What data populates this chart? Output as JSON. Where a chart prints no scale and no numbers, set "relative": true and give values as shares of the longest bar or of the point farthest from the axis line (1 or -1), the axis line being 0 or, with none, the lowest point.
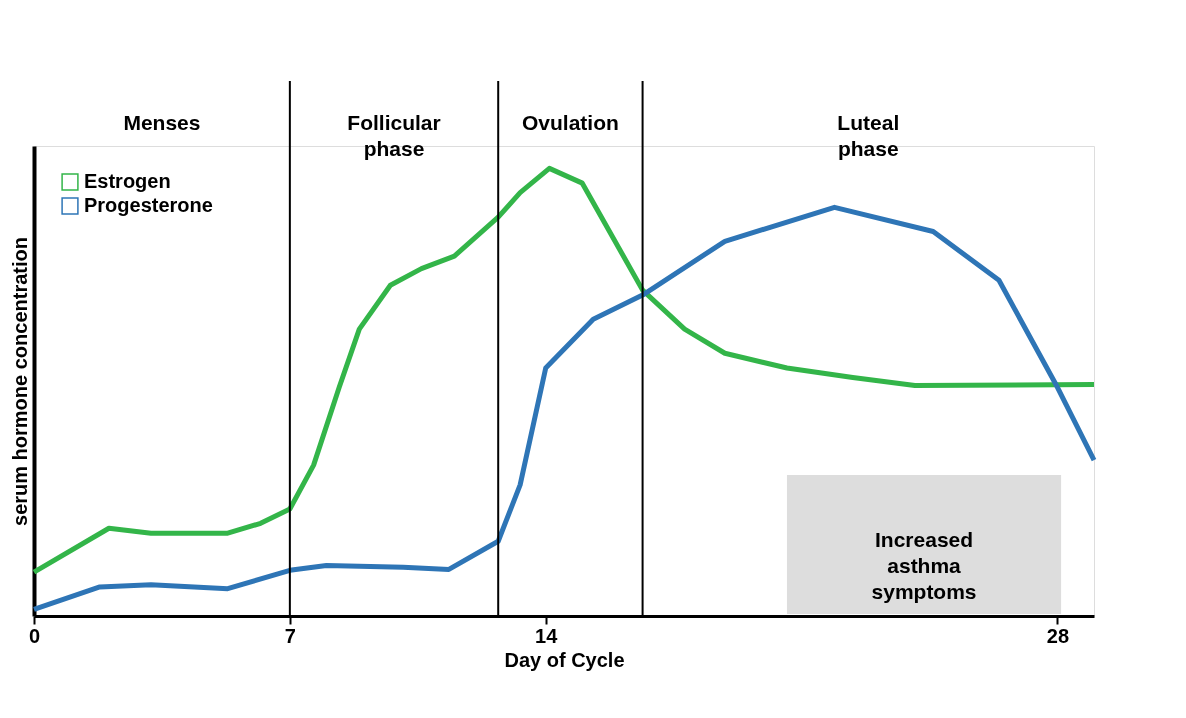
{
  "chart_data": {
    "type": "line",
    "xlabel": "Day of Cycle",
    "ylabel": "serum hormone concentration",
    "relative": true,
    "x": [
      0,
      2.05,
      3.2,
      5.3,
      6.2,
      7,
      7.65,
      8.35,
      8.9,
      9.75,
      10.6,
      11.5,
      12.7,
      13.3,
      14.1,
      15.0,
      16.65,
      17.8,
      18.9,
      20.6,
      22.4,
      24.1,
      29.0
    ],
    "series": [
      {
        "name": "Estrogen",
        "color": "#33b549",
        "values": [
          0.098,
          0.196,
          0.185,
          0.185,
          0.207,
          0.239,
          0.337,
          0.511,
          0.641,
          0.739,
          0.776,
          0.804,
          0.891,
          0.946,
          1.0,
          0.967,
          0.728,
          0.641,
          0.587,
          0.554,
          0.533,
          0.515,
          0.517
        ]
      },
      {
        "name": "Progesterone",
        "color": "#2e75b6",
        "x": [
          0,
          1.8,
          3.2,
          5.3,
          7,
          8.0,
          10.1,
          11.35,
          12.7,
          13.3,
          14,
          15.3,
          16.65,
          18.9,
          21.9,
          24.6,
          26.4,
          28.0,
          29.0
        ],
        "values": [
          0.015,
          0.065,
          0.07,
          0.061,
          0.102,
          0.113,
          0.109,
          0.104,
          0.167,
          0.293,
          0.554,
          0.663,
          0.717,
          0.837,
          0.913,
          0.859,
          0.75,
          0.511,
          0.348
        ]
      }
    ],
    "xlim": [
      0,
      29
    ],
    "xticks": [
      0,
      7,
      14,
      28
    ],
    "ref_lines": [
      {
        "axis": "x",
        "value": 7,
        "color": "#000000"
      },
      {
        "axis": "x",
        "value": 12.7,
        "color": "#000000"
      },
      {
        "axis": "x",
        "value": 16.65,
        "color": "#000000"
      }
    ],
    "bands": [
      {
        "axis": "x",
        "from": 20.6,
        "to": 28.1,
        "label": "Increased asthma symptoms",
        "color": "#dddddd"
      }
    ],
    "annotations": [
      "Menses",
      "Follicular phase",
      "Ovulation",
      "Luteal phase"
    ],
    "legend": "top left",
    "grid": false,
    "marker": "none",
    "line_style": "solid"
  }
}
